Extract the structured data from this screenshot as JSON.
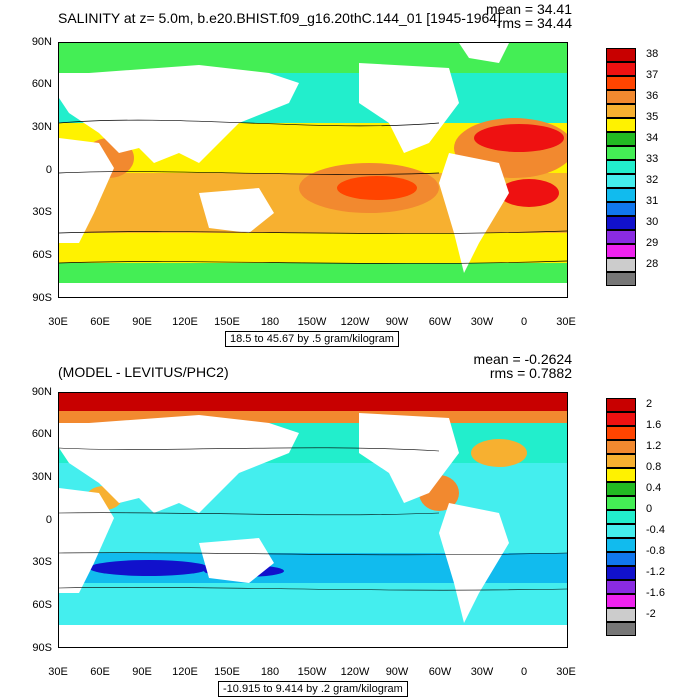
{
  "top_panel": {
    "title": "SALINITY at z=   5.0m, b.e20.BHIST.f09_g16.20thC.144_01 [1945-1964]",
    "mean_label": "mean = 34.41",
    "rms_label": "rms = 34.44",
    "info_box": "18.5 to 45.67 by .5 gram/kilogram",
    "colorbar_labels": [
      "38",
      "37",
      "36",
      "35",
      "34",
      "33",
      "32",
      "31",
      "30",
      "29",
      "28"
    ],
    "colorbar_colors": [
      "#c80000",
      "#ee1111",
      "#ff4400",
      "#f2892f",
      "#f7b030",
      "#fff200",
      "#22bb22",
      "#44ee55",
      "#22eecc",
      "#44eeee",
      "#11bbee",
      "#1177ee",
      "#1111cc",
      "#8a2be2",
      "#ee22ee",
      "#cccccc",
      "#777777"
    ]
  },
  "bottom_panel": {
    "title": "(MODEL - LEVITUS/PHC2)",
    "mean_label": "mean = -0.2624",
    "rms_label": "rms = 0.7882",
    "info_box": "-10.915 to 9.414 by .2 gram/kilogram",
    "colorbar_labels": [
      "2",
      "1.6",
      "1.2",
      "0.8",
      "0.4",
      "0",
      "-0.4",
      "-0.8",
      "-1.2",
      "-1.6",
      "-2"
    ],
    "colorbar_colors": [
      "#c80000",
      "#ee1111",
      "#ff4400",
      "#f2892f",
      "#f7b030",
      "#fff200",
      "#22bb22",
      "#44ee55",
      "#22eecc",
      "#44eeee",
      "#11bbee",
      "#1177ee",
      "#1111cc",
      "#8a2be2",
      "#ee22ee",
      "#cccccc",
      "#777777"
    ]
  },
  "lat_labels": [
    "90N",
    "60N",
    "30N",
    "0",
    "30S",
    "60S",
    "90S"
  ],
  "lon_labels": [
    "30E",
    "60E",
    "90E",
    "120E",
    "150E",
    "180",
    "150W",
    "120W",
    "90W",
    "60W",
    "30W",
    "0",
    "30E"
  ]
}
